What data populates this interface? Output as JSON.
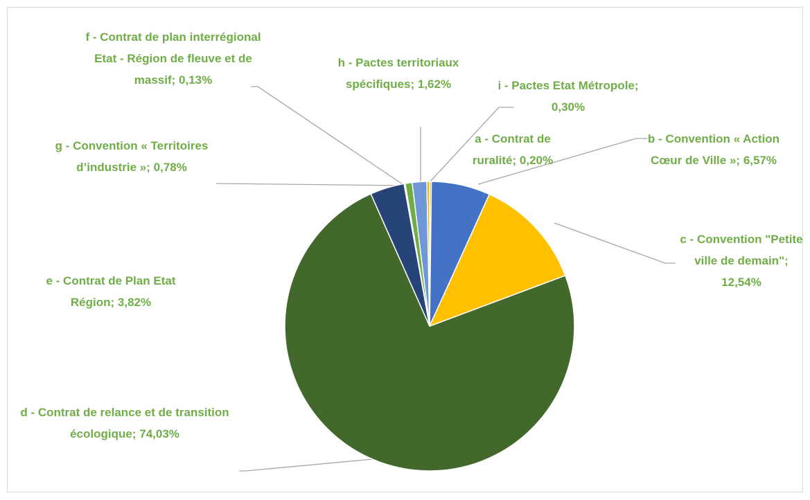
{
  "chart_data": {
    "type": "pie",
    "categories": [
      "a - Contrat de ruralité",
      "b - Convention « Action Cœur de Ville »",
      "c - Convention \"Petite ville de demain\"",
      "d - Contrat de relance et de transition écologique",
      "e - Contrat de Plan Etat Région",
      "f -  Contrat de plan interrégional Etat - Région de fleuve et de massif",
      "g - Convention « Territoires d’industrie »",
      "h - Pactes territoriaux spécifiques",
      "i - Pactes Etat Métropole"
    ],
    "values": [
      0.2,
      6.57,
      12.54,
      74.03,
      3.82,
      0.13,
      0.78,
      1.62,
      0.3
    ],
    "value_labels": [
      "0,20%",
      "6,57%",
      "12,54%",
      "74,03%",
      "3,82%",
      "0,13%",
      "0,78%",
      "1,62%",
      "0,30%"
    ],
    "label_separator": ";",
    "colors": [
      "#c9a227",
      "#4472c4",
      "#ffc000",
      "#43682b",
      "#264478",
      "#9e480e",
      "#70ad47",
      "#6f97d8",
      "#e6b800"
    ],
    "label_color": "#70ad47"
  }
}
